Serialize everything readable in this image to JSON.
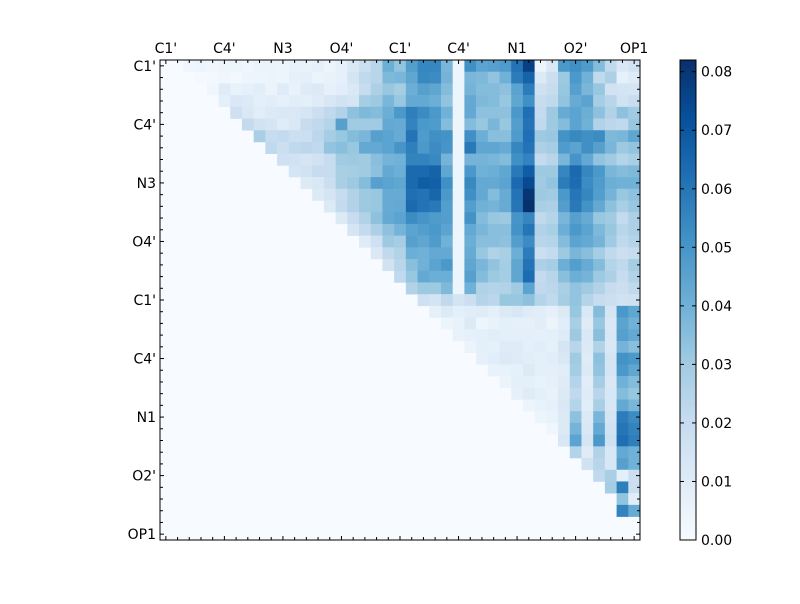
{
  "chart_data": {
    "type": "heatmap",
    "title": "",
    "xlabel": "",
    "ylabel": "",
    "x_tick_labels": [
      "C1'",
      "C4'",
      "N3",
      "O4'",
      "C1'",
      "C4'",
      "N1",
      "O2'",
      "OP1"
    ],
    "y_tick_labels": [
      "C1'",
      "C4'",
      "N3",
      "O4'",
      "C1'",
      "C4'",
      "N1",
      "O2'",
      "OP1"
    ],
    "grid": false,
    "n_rows": 41,
    "n_cols": 41,
    "colormap": [
      "#f7fbff",
      "#deebf7",
      "#c6dbef",
      "#9ecae1",
      "#6baed6",
      "#4292c6",
      "#2171b5",
      "#08519c",
      "#08306b"
    ],
    "colorbar": {
      "min": 0.0,
      "max": 0.082,
      "ticks": [
        0.0,
        0.01,
        0.02,
        0.03,
        0.04,
        0.05,
        0.06,
        0.07,
        0.08
      ],
      "tick_labels": [
        "0.00",
        "0.01",
        "0.02",
        "0.03",
        "0.04",
        "0.05",
        "0.06",
        "0.07",
        "0.08"
      ]
    },
    "values": [
      "0.000,0.000,0.003,0.004,0.003,0.004,0.004,0.003,0.005,0.005,0.004,0.006,0.006,0.007,0.004,0.007,0.012,0.018,0.024,0.041,0.033,0.047,0.055,0.055,0.038,0.004,0.052,0.045,0.046,0.048,0.061,0.077,0.004,0.012,0.049,0.052,0.048,0.036,0.022,0.012,0.016",
      "0.000,0.000,0.000,0.001,0.002,0.003,0.002,0.004,0.004,0.005,0.004,0.007,0.008,0.005,0.006,0.007,0.015,0.022,0.024,0.037,0.038,0.044,0.054,0.053,0.039,0.004,0.038,0.037,0.033,0.040,0.058,0.066,0.011,0.018,0.031,0.049,0.040,0.022,0.027,0.007,0.010",
      "0.000,0.000,0.000,0.000,0.003,0.010,0.006,0.007,0.009,0.005,0.010,0.006,0.010,0.011,0.007,0.009,0.012,0.020,0.027,0.032,0.029,0.041,0.046,0.044,0.036,0.004,0.039,0.036,0.036,0.034,0.045,0.058,0.017,0.020,0.032,0.046,0.038,0.032,0.016,0.015,0.014",
      "0.000,0.000,0.000,0.000,0.000,0.008,0.012,0.011,0.008,0.009,0.007,0.009,0.008,0.010,0.013,0.016,0.014,0.029,0.031,0.038,0.032,0.043,0.043,0.041,0.033,0.004,0.043,0.037,0.036,0.032,0.044,0.052,0.020,0.022,0.033,0.042,0.045,0.029,0.024,0.016,0.019",
      "0.000,0.000,0.000,0.000,0.000,0.000,0.017,0.012,0.009,0.011,0.012,0.012,0.014,0.018,0.022,0.026,0.034,0.037,0.036,0.041,0.049,0.057,0.053,0.049,0.040,0.004,0.043,0.034,0.034,0.034,0.049,0.062,0.021,0.031,0.042,0.045,0.041,0.034,0.026,0.034,0.030",
      "0.000,0.000,0.000,0.000,0.000,0.000,0.000,0.021,0.016,0.014,0.010,0.012,0.020,0.022,0.025,0.046,0.030,0.030,0.030,0.043,0.042,0.056,0.049,0.048,0.036,0.004,0.036,0.032,0.038,0.032,0.047,0.061,0.022,0.031,0.036,0.045,0.040,0.026,0.023,0.022,0.032",
      "0.000,0.000,0.000,0.000,0.000,0.000,0.000,0.000,0.028,0.020,0.021,0.018,0.018,0.023,0.029,0.032,0.036,0.038,0.046,0.045,0.042,0.061,0.048,0.052,0.051,0.004,0.052,0.041,0.035,0.035,0.048,0.062,0.031,0.032,0.051,0.054,0.052,0.053,0.037,0.038,0.044",
      "0.000,0.000,0.000,0.000,0.000,0.000,0.000,0.000,0.000,0.022,0.018,0.022,0.023,0.022,0.033,0.035,0.032,0.043,0.043,0.045,0.050,0.057,0.049,0.053,0.050,0.004,0.059,0.044,0.044,0.042,0.055,0.061,0.027,0.029,0.048,0.045,0.052,0.046,0.038,0.031,0.033",
      "0.000,0.000,0.000,0.000,0.000,0.000,0.000,0.000,0.000,0.000,0.017,0.016,0.014,0.016,0.020,0.030,0.031,0.030,0.035,0.039,0.040,0.056,0.056,0.054,0.039,0.004,0.039,0.039,0.038,0.036,0.052,0.056,0.021,0.024,0.038,0.050,0.043,0.033,0.030,0.025,0.028",
      "0.000,0.000,0.000,0.000,0.000,0.000,0.000,0.000,0.000,0.000,0.000,0.014,0.016,0.020,0.020,0.028,0.029,0.030,0.034,0.043,0.041,0.064,0.064,0.066,0.044,0.004,0.049,0.040,0.041,0.044,0.059,0.068,0.031,0.031,0.055,0.064,0.055,0.049,0.038,0.036,0.037",
      "0.000,0.000,0.000,0.000,0.000,0.000,0.000,0.000,0.000,0.000,0.000,0.000,0.011,0.012,0.018,0.028,0.031,0.036,0.046,0.045,0.044,0.064,0.068,0.067,0.052,0.004,0.054,0.043,0.043,0.045,0.064,0.074,0.030,0.033,0.058,0.063,0.053,0.048,0.041,0.040,0.040",
      "0.000,0.000,0.000,0.000,0.000,0.000,0.000,0.000,0.000,0.000,0.000,0.000,0.000,0.011,0.014,0.020,0.026,0.031,0.032,0.042,0.042,0.062,0.061,0.065,0.049,0.004,0.052,0.043,0.036,0.042,0.061,0.080,0.031,0.030,0.049,0.060,0.055,0.047,0.039,0.032,0.034",
      "0.000,0.000,0.000,0.000,0.000,0.000,0.000,0.000,0.000,0.000,0.000,0.000,0.000,0.000,0.011,0.021,0.026,0.031,0.032,0.042,0.043,0.064,0.061,0.059,0.047,0.004,0.047,0.040,0.039,0.042,0.060,0.082,0.028,0.027,0.047,0.059,0.051,0.043,0.034,0.028,0.032",
      "0.000,0.000,0.000,0.000,0.000,0.000,0.000,0.000,0.000,0.000,0.000,0.000,0.000,0.000,0.000,0.011,0.020,0.026,0.034,0.043,0.045,0.053,0.050,0.048,0.047,0.004,0.051,0.036,0.032,0.031,0.050,0.055,0.022,0.025,0.038,0.046,0.042,0.032,0.030,0.021,0.027",
      "0.000,0.000,0.000,0.000,0.000,0.000,0.000,0.000,0.000,0.000,0.000,0.000,0.000,0.000,0.000,0.000,0.014,0.021,0.027,0.034,0.039,0.045,0.047,0.049,0.045,0.004,0.043,0.038,0.035,0.035,0.051,0.060,0.026,0.028,0.041,0.049,0.045,0.037,0.032,0.024,0.027",
      "0.000,0.000,0.000,0.000,0.000,0.000,0.000,0.000,0.000,0.000,0.000,0.000,0.000,0.000,0.000,0.000,0.000,0.010,0.017,0.031,0.029,0.046,0.044,0.048,0.040,0.004,0.041,0.035,0.035,0.034,0.047,0.053,0.024,0.025,0.036,0.045,0.043,0.039,0.030,0.022,0.025",
      "0.000,0.000,0.000,0.000,0.000,0.000,0.000,0.000,0.000,0.000,0.000,0.000,0.000,0.000,0.000,0.000,0.000,0.000,0.012,0.022,0.026,0.041,0.040,0.043,0.043,0.004,0.042,0.032,0.026,0.028,0.041,0.058,0.018,0.021,0.031,0.038,0.035,0.029,0.022,0.018,0.020",
      "0.000,0.000,0.000,0.000,0.000,0.000,0.000,0.000,0.000,0.000,0.000,0.000,0.000,0.000,0.000,0.000,0.000,0.000,0.000,0.016,0.024,0.035,0.040,0.045,0.049,0.004,0.044,0.038,0.033,0.029,0.044,0.061,0.027,0.029,0.041,0.047,0.042,0.036,0.025,0.022,0.029",
      "0.000,0.000,0.000,0.000,0.000,0.000,0.000,0.000,0.000,0.000,0.000,0.000,0.000,0.000,0.000,0.000,0.000,0.000,0.000,0.000,0.022,0.032,0.043,0.041,0.041,0.004,0.046,0.036,0.031,0.029,0.044,0.063,0.021,0.024,0.035,0.041,0.039,0.031,0.027,0.020,0.026",
      "0.000,0.000,0.000,0.000,0.000,0.000,0.000,0.000,0.000,0.000,0.000,0.000,0.000,0.000,0.000,0.000,0.000,0.000,0.000,0.000,0.000,0.026,0.031,0.031,0.037,0.004,0.040,0.026,0.025,0.026,0.030,0.045,0.022,0.023,0.028,0.033,0.030,0.026,0.020,0.018,0.022",
      "0.000,0.000,0.000,0.000,0.000,0.000,0.000,0.000,0.000,0.000,0.000,0.000,0.000,0.000,0.000,0.000,0.000,0.000,0.000,0.000,0.000,0.000,0.017,0.015,0.022,0.015,0.018,0.025,0.023,0.032,0.032,0.034,0.025,0.022,0.029,0.033,0.025,0.020,0.018,0.016,0.017",
      "0.000,0.000,0.000,0.000,0.000,0.000,0.000,0.000,0.000,0.000,0.000,0.000,0.000,0.000,0.000,0.000,0.000,0.000,0.000,0.000,0.000,0.000,0.000,0.007,0.011,0.008,0.009,0.010,0.008,0.011,0.013,0.010,0.009,0.007,0.011,0.032,0.012,0.036,0.014,0.049,0.044",
      "0.000,0.000,0.000,0.000,0.000,0.000,0.000,0.000,0.000,0.000,0.000,0.000,0.000,0.000,0.000,0.000,0.000,0.000,0.000,0.000,0.000,0.000,0.000,0.000,0.004,0.006,0.011,0.004,0.006,0.008,0.007,0.007,0.009,0.005,0.009,0.028,0.010,0.032,0.012,0.045,0.040",
      "0.000,0.000,0.000,0.000,0.000,0.000,0.000,0.000,0.000,0.000,0.000,0.000,0.000,0.000,0.000,0.000,0.000,0.000,0.000,0.000,0.000,0.000,0.000,0.000,0.000,0.006,0.007,0.008,0.009,0.008,0.008,0.008,0.007,0.008,0.010,0.031,0.012,0.035,0.013,0.046,0.043",
      "0.000,0.000,0.000,0.000,0.000,0.000,0.000,0.000,0.000,0.000,0.000,0.000,0.000,0.000,0.000,0.000,0.000,0.000,0.000,0.000,0.000,0.000,0.000,0.000,0.000,0.000,0.005,0.008,0.007,0.010,0.010,0.008,0.009,0.007,0.014,0.024,0.011,0.026,0.012,0.039,0.035",
      "0.000,0.000,0.000,0.000,0.000,0.000,0.000,0.000,0.000,0.000,0.000,0.000,0.000,0.000,0.000,0.000,0.000,0.000,0.000,0.000,0.000,0.000,0.000,0.000,0.000,0.000,0.000,0.007,0.009,0.011,0.010,0.009,0.008,0.009,0.012,0.030,0.010,0.034,0.014,0.051,0.049",
      "0.000,0.000,0.000,0.000,0.000,0.000,0.000,0.000,0.000,0.000,0.000,0.000,0.000,0.000,0.000,0.000,0.000,0.000,0.000,0.000,0.000,0.000,0.000,0.000,0.000,0.000,0.000,0.000,0.006,0.006,0.007,0.011,0.008,0.008,0.009,0.029,0.011,0.033,0.014,0.049,0.044",
      "0.000,0.000,0.000,0.000,0.000,0.000,0.000,0.000,0.000,0.000,0.000,0.000,0.000,0.000,0.000,0.000,0.000,0.000,0.000,0.000,0.000,0.000,0.000,0.000,0.000,0.000,0.000,0.000,0.000,0.005,0.008,0.008,0.006,0.007,0.010,0.025,0.009,0.029,0.012,0.040,0.036",
      "0.000,0.000,0.000,0.000,0.000,0.000,0.000,0.000,0.000,0.000,0.000,0.000,0.000,0.000,0.000,0.000,0.000,0.000,0.000,0.000,0.000,0.000,0.000,0.000,0.000,0.000,0.000,0.000,0.000,0.000,0.007,0.010,0.008,0.006,0.011,0.022,0.010,0.024,0.013,0.036,0.032",
      "0.000,0.000,0.000,0.000,0.000,0.000,0.000,0.000,0.000,0.000,0.000,0.000,0.000,0.000,0.000,0.000,0.000,0.000,0.000,0.000,0.000,0.000,0.000,0.000,0.000,0.000,0.000,0.000,0.000,0.000,0.000,0.004,0.006,0.007,0.012,0.025,0.009,0.028,0.013,0.043,0.038",
      "0.000,0.000,0.000,0.000,0.000,0.000,0.000,0.000,0.000,0.000,0.000,0.000,0.000,0.000,0.000,0.000,0.000,0.000,0.000,0.000,0.000,0.000,0.000,0.000,0.000,0.000,0.000,0.000,0.000,0.000,0.000,0.000,0.004,0.006,0.011,0.034,0.011,0.038,0.015,0.058,0.053",
      "0.000,0.000,0.000,0.000,0.000,0.000,0.000,0.000,0.000,0.000,0.000,0.000,0.000,0.000,0.000,0.000,0.000,0.000,0.000,0.000,0.000,0.000,0.000,0.000,0.000,0.000,0.000,0.000,0.000,0.000,0.000,0.000,0.000,0.003,0.011,0.039,0.012,0.043,0.016,0.060,0.056",
      "0.000,0.000,0.000,0.000,0.000,0.000,0.000,0.000,0.000,0.000,0.000,0.000,0.000,0.000,0.000,0.000,0.000,0.000,0.000,0.000,0.000,0.000,0.000,0.000,0.000,0.000,0.000,0.000,0.000,0.000,0.000,0.000,0.000,0.000,0.013,0.045,0.014,0.049,0.017,0.062,0.057",
      "0.000,0.000,0.000,0.000,0.000,0.000,0.000,0.000,0.000,0.000,0.000,0.000,0.000,0.000,0.000,0.000,0.000,0.000,0.000,0.000,0.000,0.000,0.000,0.000,0.000,0.000,0.000,0.000,0.000,0.000,0.000,0.000,0.000,0.000,0.000,0.025,0.010,0.026,0.013,0.043,0.040",
      "0.000,0.000,0.000,0.000,0.000,0.000,0.000,0.000,0.000,0.000,0.000,0.000,0.000,0.000,0.000,0.000,0.000,0.000,0.000,0.000,0.000,0.000,0.000,0.000,0.000,0.000,0.000,0.000,0.000,0.000,0.000,0.000,0.000,0.000,0.000,0.000,0.016,0.024,0.013,0.046,0.040",
      "0.000,0.000,0.000,0.000,0.000,0.000,0.000,0.000,0.000,0.000,0.000,0.000,0.000,0.000,0.000,0.000,0.000,0.000,0.000,0.000,0.000,0.000,0.000,0.000,0.000,0.000,0.000,0.000,0.000,0.000,0.000,0.000,0.000,0.000,0.000,0.000,0.000,0.022,0.028,0.008,0.018",
      "0.000,0.000,0.000,0.000,0.000,0.000,0.000,0.000,0.000,0.000,0.000,0.000,0.000,0.000,0.000,0.000,0.000,0.000,0.000,0.000,0.000,0.000,0.000,0.000,0.000,0.000,0.000,0.000,0.000,0.000,0.000,0.000,0.000,0.000,0.000,0.000,0.000,0.000,0.029,0.057,0.018",
      "0.000,0.000,0.000,0.000,0.000,0.000,0.000,0.000,0.000,0.000,0.000,0.000,0.000,0.000,0.000,0.000,0.000,0.000,0.000,0.000,0.000,0.000,0.000,0.000,0.000,0.000,0.000,0.000,0.000,0.000,0.000,0.000,0.000,0.000,0.000,0.000,0.000,0.000,0.000,0.033,0.009",
      "0.000,0.000,0.000,0.000,0.000,0.000,0.000,0.000,0.000,0.000,0.000,0.000,0.000,0.000,0.000,0.000,0.000,0.000,0.000,0.000,0.000,0.000,0.000,0.000,0.000,0.000,0.000,0.000,0.000,0.000,0.000,0.000,0.000,0.000,0.000,0.000,0.000,0.000,0.000,0.056,0.042",
      "0.000,0.000,0.000,0.000,0.000,0.000,0.000,0.000,0.000,0.000,0.000,0.000,0.000,0.000,0.000,0.000,0.000,0.000,0.000,0.000,0.000,0.000,0.000,0.000,0.000,0.000,0.000,0.000,0.000,0.000,0.000,0.000,0.000,0.000,0.000,0.000,0.000,0.000,0.000,0.000,0.000"
    ]
  }
}
